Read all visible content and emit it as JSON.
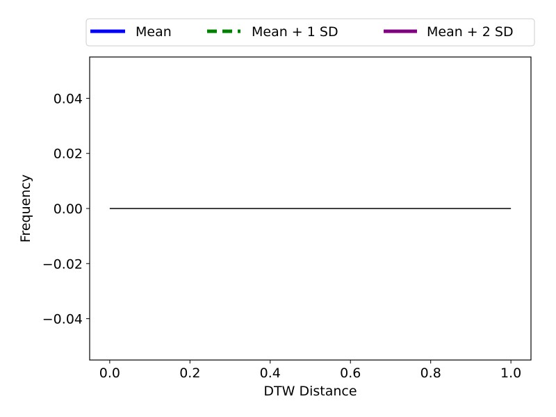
{
  "chart_data": {
    "type": "line",
    "title": "",
    "xlabel": "DTW Distance",
    "ylabel": "Frequency",
    "xlim": [
      -0.05,
      1.05
    ],
    "ylim": [
      -0.055,
      0.055
    ],
    "x_ticks": [
      0.0,
      0.2,
      0.4,
      0.6,
      0.8,
      1.0
    ],
    "x_tick_labels": [
      "0.0",
      "0.2",
      "0.4",
      "0.6",
      "0.8",
      "1.0"
    ],
    "y_ticks": [
      0.04,
      0.02,
      0.0,
      -0.02,
      -0.04
    ],
    "y_tick_labels": [
      "0.04",
      "0.02",
      "0.00",
      "−0.02",
      "−0.04"
    ],
    "grid": false,
    "legend_position": "top-center-outside",
    "series": [
      {
        "type": "line",
        "x": [
          0.0,
          1.0
        ],
        "y": [
          0.0,
          0.0
        ],
        "color": "#000000",
        "linestyle": "solid"
      }
    ],
    "legend": [
      {
        "label": "Mean",
        "color": "#0000ff",
        "linestyle": "solid"
      },
      {
        "label": "Mean + 1 SD",
        "color": "#008000",
        "linestyle": "dashed"
      },
      {
        "label": "Mean + 2 SD",
        "color": "#800080",
        "linestyle": "solid"
      }
    ]
  }
}
